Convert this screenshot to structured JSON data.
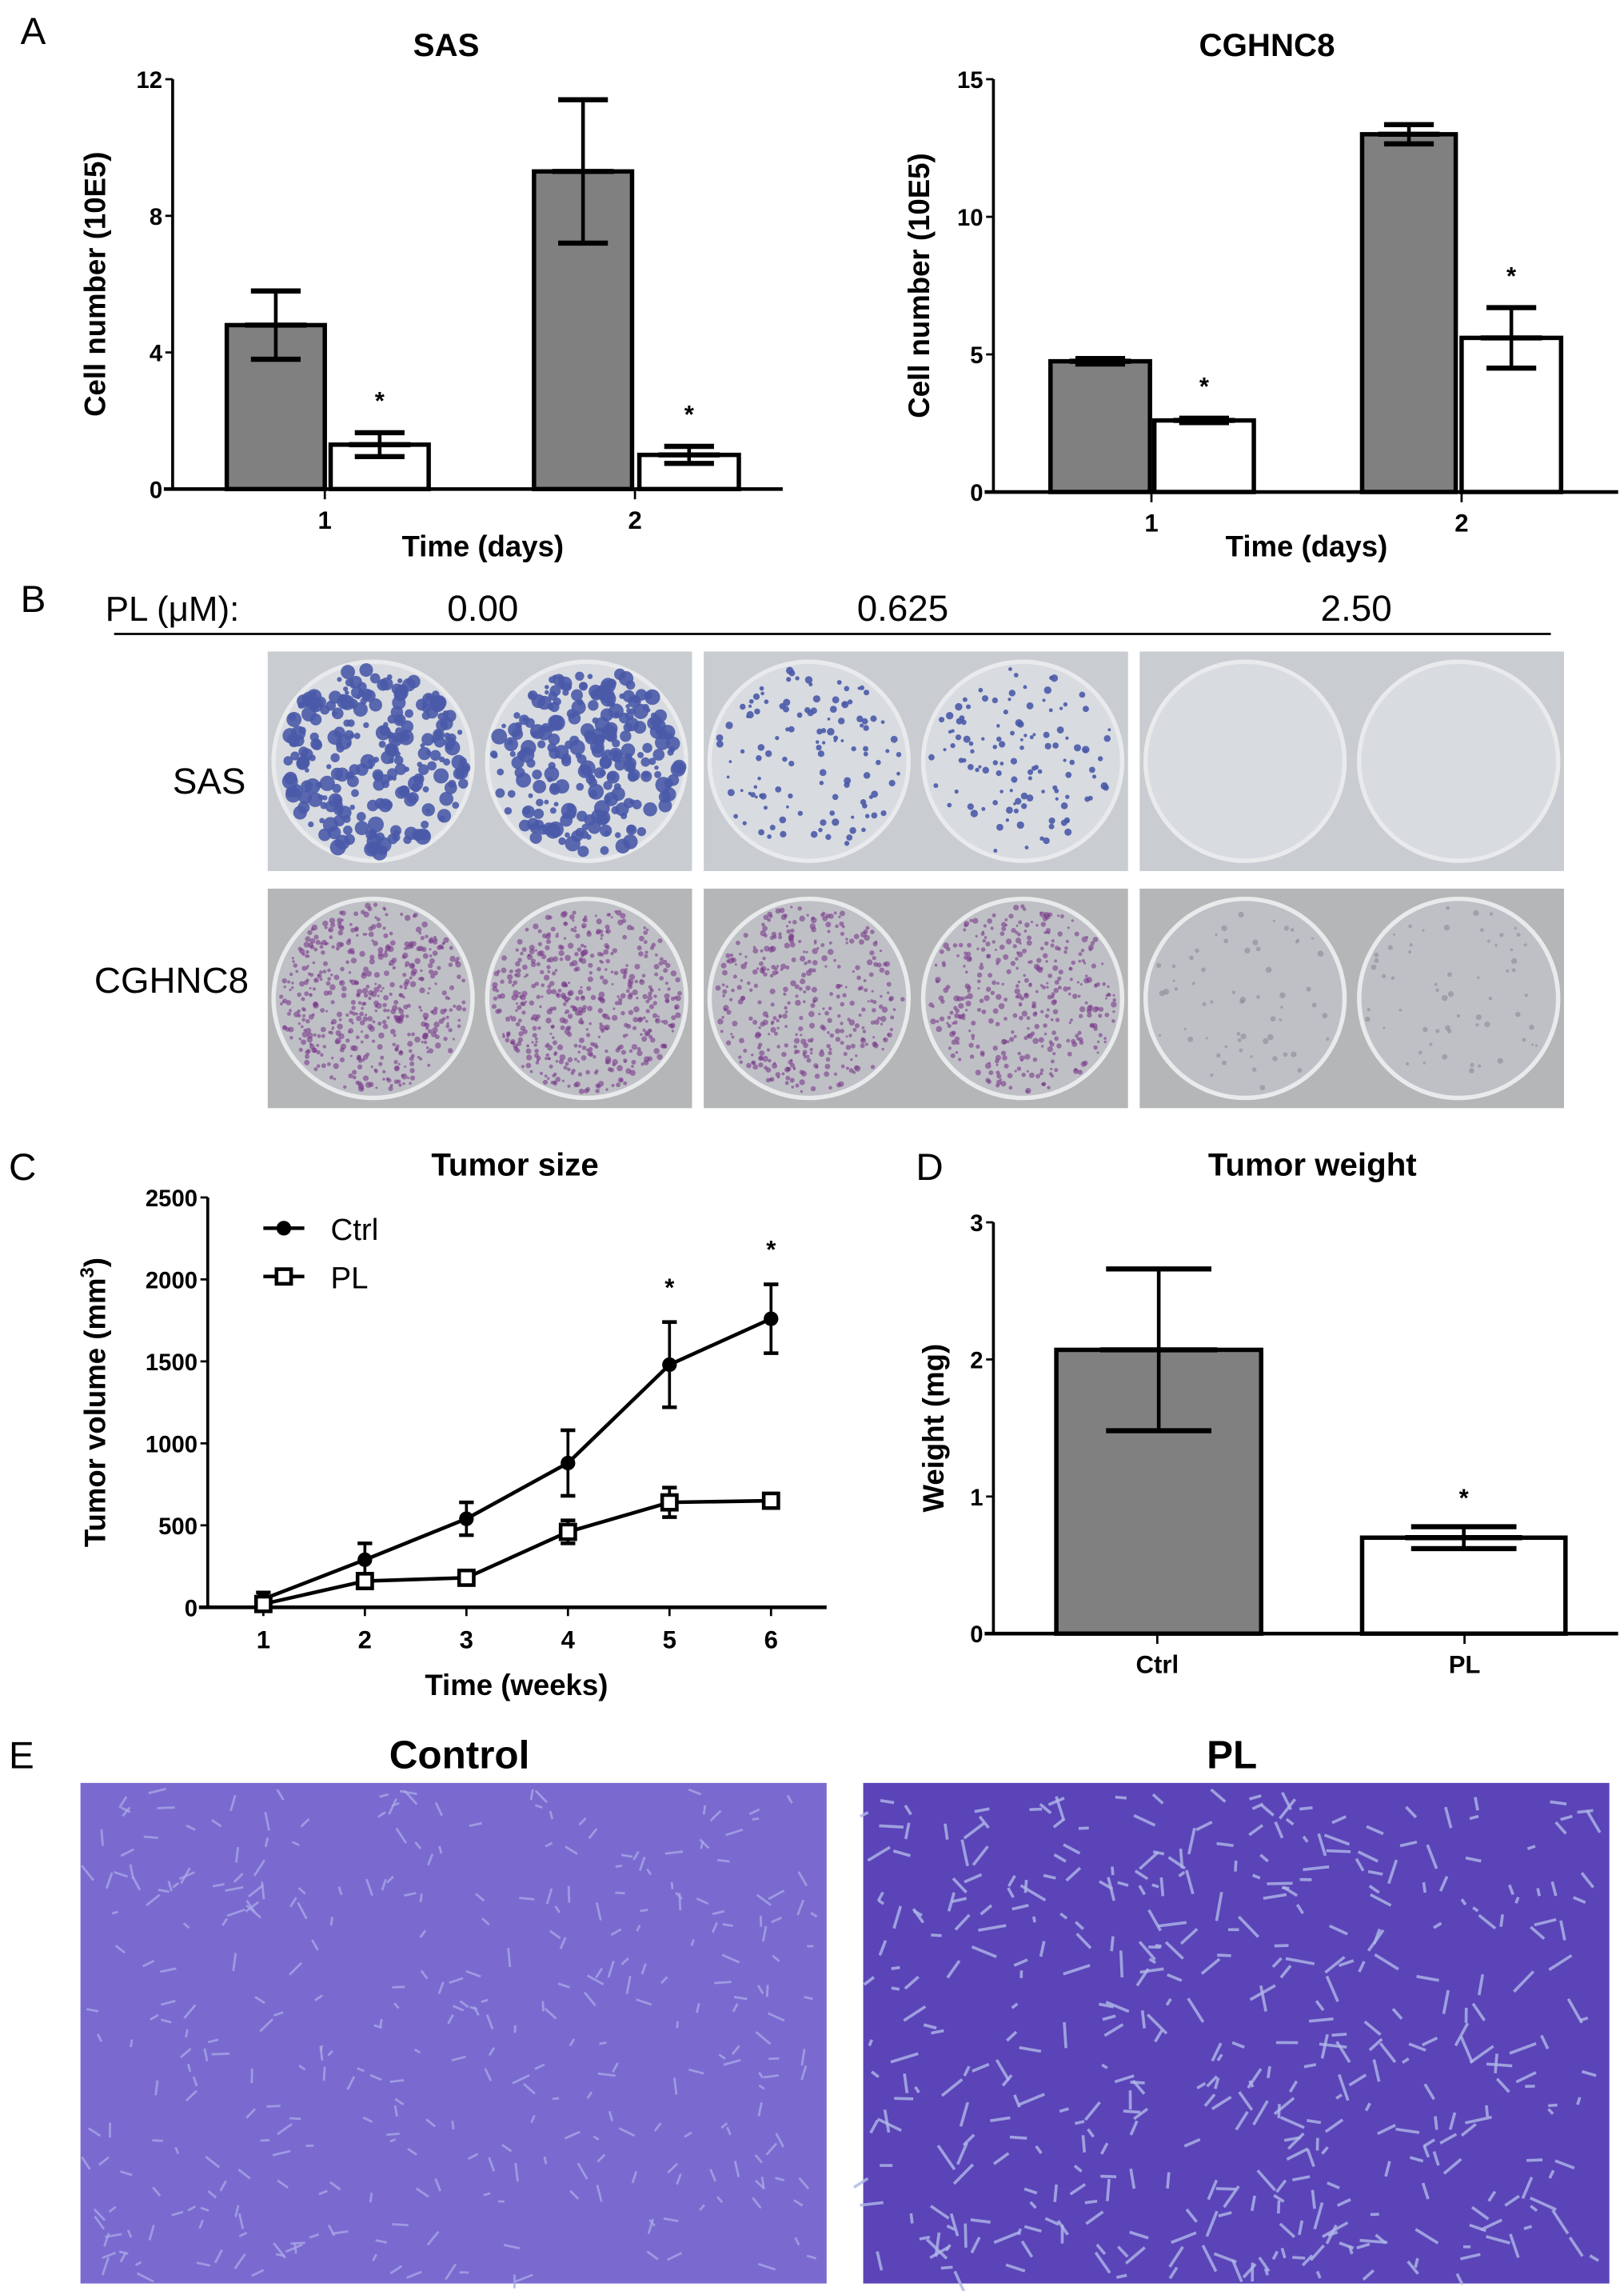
{
  "panel_letters": [
    "A",
    "B",
    "C",
    "D",
    "E"
  ],
  "colors": {
    "ctrl_bar": "#808080",
    "pl_bar": "#ffffff",
    "sas_stain": "#4a5aa8",
    "cghnc8_stain": "#7a3a8a",
    "histology": "#6a5ac8"
  },
  "chart_data": [
    {
      "type": "bar",
      "title": "SAS",
      "xlabel": "Time (days)",
      "ylabel": "Cell number (10E5)",
      "categories": [
        "1",
        "2"
      ],
      "ylim": [
        0,
        12
      ],
      "yticks": [
        "0",
        "4",
        "8",
        "12"
      ],
      "series": [
        {
          "values": [
            4.8,
            9.3
          ],
          "errors": [
            1.0,
            2.1
          ],
          "color": "#808080"
        },
        {
          "values": [
            1.3,
            1.0
          ],
          "errors": [
            0.35,
            0.25
          ],
          "color": "#ffffff"
        }
      ],
      "annotations": [
        "*",
        "*"
      ]
    },
    {
      "type": "bar",
      "title": "CGHNC8",
      "xlabel": "Time (days)",
      "ylabel": "Cell number (10E5)",
      "categories": [
        "1",
        "2"
      ],
      "ylim": [
        0,
        15
      ],
      "yticks": [
        "0",
        "5",
        "10",
        "15"
      ],
      "series": [
        {
          "values": [
            4.75,
            13.0
          ],
          "errors": [
            0.1,
            0.35
          ],
          "color": "#808080"
        },
        {
          "values": [
            2.6,
            5.6
          ],
          "errors": [
            0.08,
            1.1
          ],
          "color": "#ffffff"
        }
      ],
      "annotations": [
        "*",
        "*"
      ]
    },
    {
      "type": "line",
      "title": "Tumor size",
      "xlabel": "Time (weeks)",
      "ylabel": "Tumor volume (mm",
      "ylabel_sup": "3",
      "ylabel_end": ")",
      "x": [
        1,
        2,
        3,
        4,
        5,
        6
      ],
      "ylim": [
        0,
        2500
      ],
      "yticks": [
        "0",
        "500",
        "1000",
        "1500",
        "2000",
        "2500"
      ],
      "legend_position": "top-left",
      "series": [
        {
          "name": "Ctrl",
          "marker": "filled-circle",
          "values": [
            50,
            290,
            540,
            880,
            1480,
            1760
          ],
          "errors": [
            40,
            100,
            100,
            200,
            260,
            210
          ]
        },
        {
          "name": "PL",
          "marker": "open-square",
          "values": [
            20,
            160,
            180,
            460,
            640,
            650
          ],
          "errors": [
            30,
            40,
            30,
            70,
            90,
            40
          ]
        }
      ],
      "annotations": [
        {
          "x": 5,
          "text": "*"
        },
        {
          "x": 6,
          "text": "*"
        }
      ]
    },
    {
      "type": "bar",
      "title": "Tumor weight",
      "xlabel": "",
      "ylabel": "Weight (mg)",
      "categories": [
        "Ctrl",
        "PL"
      ],
      "ylim": [
        0,
        3
      ],
      "yticks": [
        "0",
        "1",
        "2",
        "3"
      ],
      "values": [
        2.07,
        0.7
      ],
      "errors": [
        0.59,
        0.08
      ],
      "colors": [
        "#808080",
        "#ffffff"
      ],
      "annotations": [
        "",
        "*"
      ]
    }
  ],
  "colony": {
    "header": "PL (μM):",
    "concentrations": [
      "0.00",
      "0.625",
      "2.50"
    ],
    "rows": [
      "SAS",
      "CGHNC8"
    ]
  },
  "histology": {
    "titles": [
      "Control",
      "PL"
    ]
  }
}
